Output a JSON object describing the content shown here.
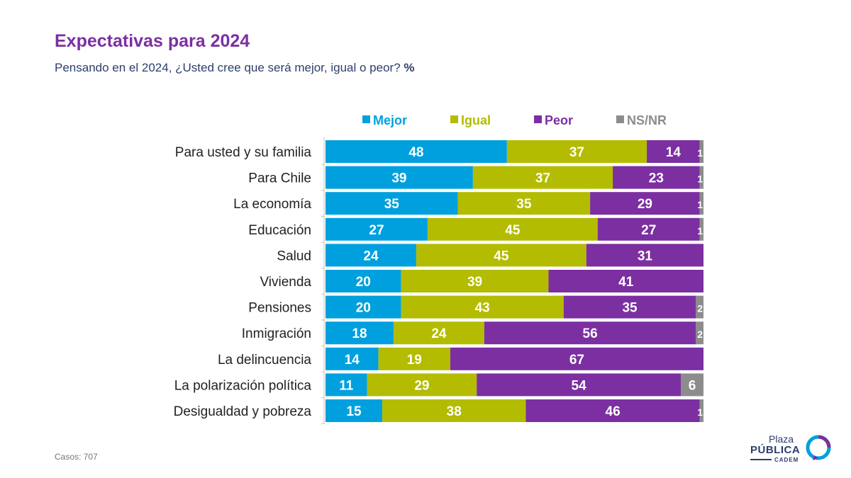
{
  "header": {
    "title": "Expectativas para 2024",
    "subtitle": "Pensando en el 2024, ¿Usted cree que será mejor, igual o peor?",
    "subtitle_unit": "%"
  },
  "footer": {
    "casos": "Casos: 707"
  },
  "logo": {
    "line1": "Plaza",
    "line2": "PÚBLICA",
    "line3": "CADEM"
  },
  "colors": {
    "Mejor": "#00a0de",
    "Igual": "#b3bc00",
    "Peor": "#7b2fa1",
    "NS/NR": "#8c8c8c"
  },
  "chart_data": {
    "type": "bar",
    "orientation": "horizontal",
    "stacked": true,
    "categories": [
      "Para usted y su familia",
      "Para Chile",
      "La economía",
      "Educación",
      "Salud",
      "Vivienda",
      "Pensiones",
      "Inmigración",
      "La delincuencia",
      "La polarización política",
      "Desigualdad y pobreza"
    ],
    "series": [
      {
        "name": "Mejor",
        "values": [
          48,
          39,
          35,
          27,
          24,
          20,
          20,
          18,
          14,
          11,
          15
        ]
      },
      {
        "name": "Igual",
        "values": [
          37,
          37,
          35,
          45,
          45,
          39,
          43,
          24,
          19,
          29,
          38
        ]
      },
      {
        "name": "Peor",
        "values": [
          14,
          23,
          29,
          27,
          31,
          41,
          35,
          56,
          67,
          54,
          46
        ]
      },
      {
        "name": "NS/NR",
        "values": [
          1,
          1,
          1,
          1,
          0,
          0,
          2,
          2,
          0,
          6,
          1
        ]
      }
    ],
    "legend_position": "top",
    "grid": false
  }
}
